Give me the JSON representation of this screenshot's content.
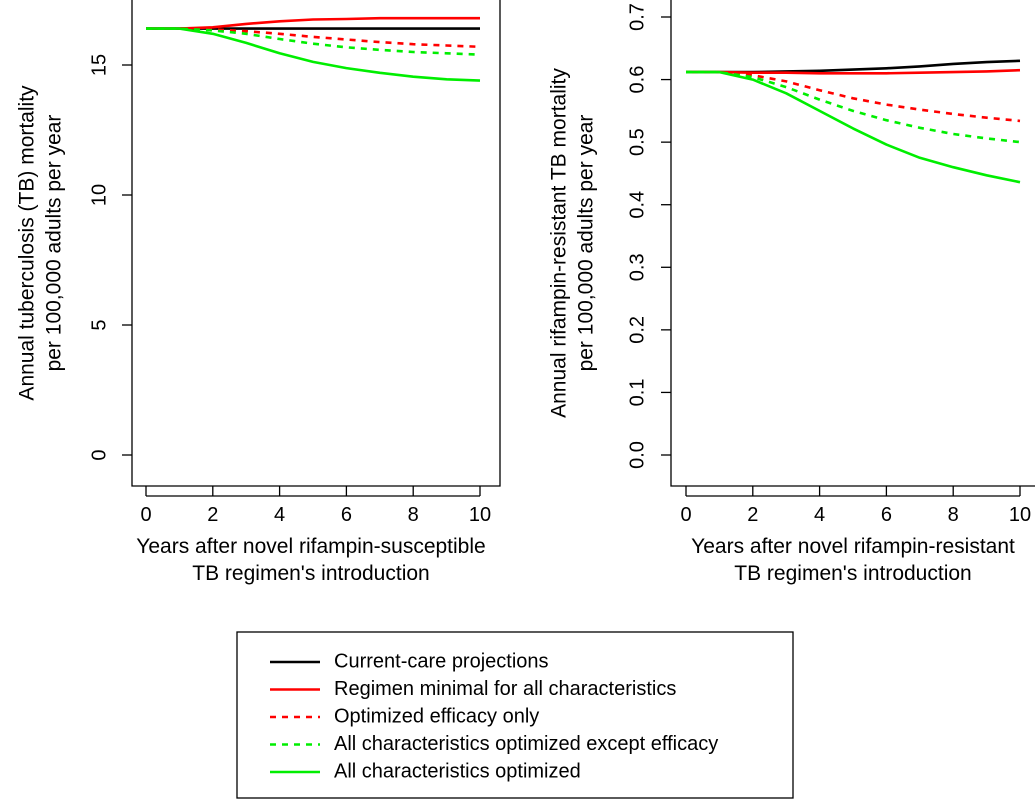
{
  "chart_data": [
    {
      "type": "line",
      "title": "",
      "xlabel": [
        "Years after novel rifampin-susceptible",
        "TB regimen's introduction"
      ],
      "ylabel": [
        "Annual tuberculosis (TB) mortality",
        "per 100,000 adults per year"
      ],
      "xlim": [
        0,
        10
      ],
      "ylim": [
        0,
        17.5
      ],
      "xticks": [
        "0",
        "2",
        "4",
        "6",
        "8",
        "10"
      ],
      "yticks": [
        "0",
        "5",
        "10",
        "15"
      ],
      "grid": false,
      "x": [
        0,
        1,
        2,
        3,
        4,
        5,
        6,
        7,
        8,
        9,
        10
      ],
      "series": [
        {
          "name": "Current-care projections",
          "color": "#000000",
          "dash": "solid",
          "values": [
            16.4,
            16.4,
            16.4,
            16.4,
            16.4,
            16.4,
            16.4,
            16.4,
            16.4,
            16.4,
            16.4
          ]
        },
        {
          "name": "Regimen minimal for all characteristics",
          "color": "#ff0000",
          "dash": "solid",
          "values": [
            16.4,
            16.4,
            16.45,
            16.58,
            16.68,
            16.75,
            16.77,
            16.8,
            16.8,
            16.8,
            16.8
          ]
        },
        {
          "name": "Optimized efficacy only",
          "color": "#ff0000",
          "dash": "dotted",
          "values": [
            16.4,
            16.4,
            16.37,
            16.3,
            16.2,
            16.08,
            15.98,
            15.88,
            15.8,
            15.75,
            15.7
          ]
        },
        {
          "name": "All characteristics optimized except efficacy",
          "color": "#00ee00",
          "dash": "dotted",
          "values": [
            16.4,
            16.4,
            16.33,
            16.2,
            16.0,
            15.82,
            15.68,
            15.58,
            15.5,
            15.45,
            15.4
          ]
        },
        {
          "name": "All characteristics optimized",
          "color": "#00ee00",
          "dash": "solid",
          "values": [
            16.4,
            16.4,
            16.2,
            15.85,
            15.45,
            15.12,
            14.88,
            14.7,
            14.55,
            14.45,
            14.4
          ]
        }
      ]
    },
    {
      "type": "line",
      "title": "",
      "xlabel": [
        "Years after novel rifampin-resistant",
        "TB regimen's introduction"
      ],
      "ylabel": [
        "Annual rifampin-resistant TB mortality",
        "per 100,000 adults per year"
      ],
      "xlim": [
        0,
        10
      ],
      "ylim": [
        0,
        0.7
      ],
      "xticks": [
        "0",
        "2",
        "4",
        "6",
        "8",
        "10"
      ],
      "yticks": [
        "0.0",
        "0.1",
        "0.2",
        "0.3",
        "0.4",
        "0.5",
        "0.6",
        "0.7"
      ],
      "grid": false,
      "x": [
        0,
        1,
        2,
        3,
        4,
        5,
        6,
        7,
        8,
        9,
        10
      ],
      "series": [
        {
          "name": "Current-care projections",
          "color": "#000000",
          "dash": "solid",
          "values": [
            0.612,
            0.612,
            0.612,
            0.613,
            0.614,
            0.616,
            0.618,
            0.621,
            0.625,
            0.628,
            0.63
          ]
        },
        {
          "name": "Regimen minimal for all characteristics",
          "color": "#ff0000",
          "dash": "solid",
          "values": [
            0.612,
            0.612,
            0.611,
            0.611,
            0.61,
            0.61,
            0.61,
            0.611,
            0.612,
            0.613,
            0.615
          ]
        },
        {
          "name": "Optimized efficacy only",
          "color": "#ff0000",
          "dash": "dotted",
          "values": [
            0.612,
            0.612,
            0.607,
            0.597,
            0.583,
            0.57,
            0.56,
            0.552,
            0.545,
            0.539,
            0.534
          ]
        },
        {
          "name": "All characteristics optimized except efficacy",
          "color": "#00ee00",
          "dash": "dotted",
          "values": [
            0.612,
            0.612,
            0.604,
            0.588,
            0.568,
            0.55,
            0.535,
            0.523,
            0.513,
            0.506,
            0.5
          ]
        },
        {
          "name": "All characteristics optimized",
          "color": "#00ee00",
          "dash": "solid",
          "values": [
            0.612,
            0.612,
            0.6,
            0.578,
            0.55,
            0.522,
            0.496,
            0.475,
            0.46,
            0.447,
            0.436
          ]
        }
      ]
    }
  ],
  "legend": {
    "placement": "bottom-center",
    "items": [
      {
        "label": "Current-care projections",
        "color": "#000000",
        "dash": "solid"
      },
      {
        "label": "Regimen minimal for all characteristics",
        "color": "#ff0000",
        "dash": "solid"
      },
      {
        "label": "Optimized efficacy only",
        "color": "#ff0000",
        "dash": "dotted"
      },
      {
        "label": "All characteristics optimized except efficacy",
        "color": "#00ee00",
        "dash": "dotted"
      },
      {
        "label": "All characteristics optimized",
        "color": "#00ee00",
        "dash": "solid"
      }
    ]
  }
}
